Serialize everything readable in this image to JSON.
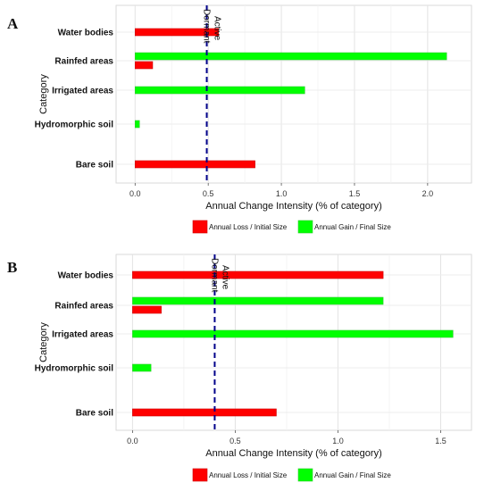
{
  "chart_data": [
    {
      "panel": "A",
      "type": "bar",
      "orientation": "horizontal",
      "categories": [
        "Water bodies",
        "Rainfed areas",
        "Irrigated areas",
        "Hydromorphic soil",
        "Bare soil"
      ],
      "series": [
        {
          "name": "Annual Loss / Initial Size",
          "color": "#ff0000",
          "values": [
            0.57,
            0.12,
            null,
            null,
            0.82
          ]
        },
        {
          "name": "Annual Gain / Final Size",
          "color": "#00ff00",
          "values": [
            null,
            2.13,
            1.16,
            0.03,
            null
          ]
        }
      ],
      "xlabel": "Annual Change Intensity (% of category)",
      "ylabel": "Category",
      "xlim": [
        -0.13,
        2.3
      ],
      "xticks": [
        0.0,
        0.5,
        1.0,
        1.5,
        2.0
      ],
      "xtick_labels": [
        "0.0",
        "0.5",
        "1.0",
        "1.5",
        "2.0"
      ],
      "reference_line": {
        "value": 0.49,
        "color": "#00008b",
        "style": "dashed",
        "labels": [
          "Dormant",
          "Active"
        ]
      },
      "grid": true,
      "legend_position": "bottom"
    },
    {
      "panel": "B",
      "type": "bar",
      "orientation": "horizontal",
      "categories": [
        "Water bodies",
        "Rainfed areas",
        "Irrigated areas",
        "Hydromorphic soil",
        "Bare soil"
      ],
      "series": [
        {
          "name": "Annual Loss / Initial Size",
          "color": "#ff0000",
          "values": [
            1.22,
            0.14,
            null,
            null,
            0.7
          ]
        },
        {
          "name": "Annual Gain / Final Size",
          "color": "#00ff00",
          "values": [
            null,
            1.22,
            1.56,
            0.09,
            null
          ]
        }
      ],
      "xlabel": "Annual Change Intensity (% of category)",
      "ylabel": "Category",
      "xlim": [
        -0.08,
        1.65
      ],
      "xticks": [
        0.0,
        0.5,
        1.0,
        1.5
      ],
      "xtick_labels": [
        "0.0",
        "0.5",
        "1.0",
        "1.5"
      ],
      "reference_line": {
        "value": 0.4,
        "color": "#00008b",
        "style": "dashed",
        "labels": [
          "Dormant",
          "Active"
        ]
      },
      "grid": true,
      "legend_position": "bottom"
    }
  ]
}
